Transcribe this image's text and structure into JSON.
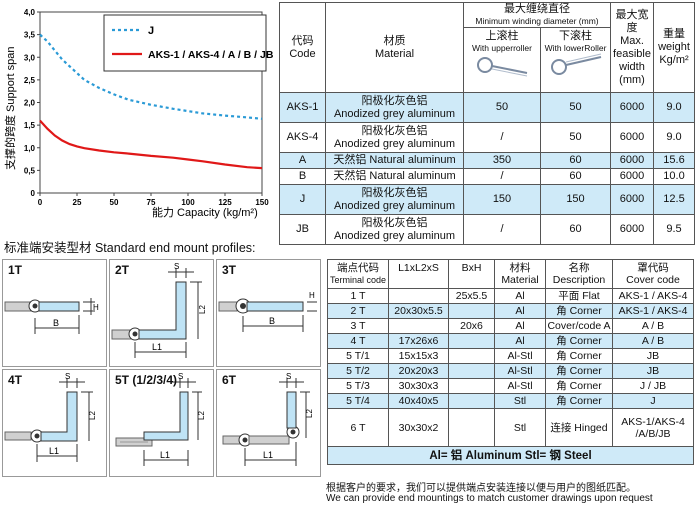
{
  "chart_data": {
    "type": "line",
    "ylabel": "支撑的跨度 Support span",
    "xlabel": "能力 Capacity (kg/m²)",
    "x_ticks": [
      "0",
      "25",
      "50",
      "75",
      "100",
      "125",
      "150"
    ],
    "y_ticks": [
      "0",
      "0,5",
      "1,0",
      "1,5",
      "2,0",
      "2,5",
      "3,0",
      "3,5",
      "4,0"
    ],
    "xlim": [
      0,
      150
    ],
    "ylim": [
      0,
      4
    ],
    "series": [
      {
        "name": "J",
        "color": "#2a9ad6",
        "dash": true,
        "x": [
          0,
          5,
          10,
          15,
          20,
          25,
          30,
          40,
          50,
          60,
          75,
          90,
          100,
          110,
          125,
          140,
          150
        ],
        "y": [
          3.5,
          3.35,
          3.15,
          2.95,
          2.8,
          2.65,
          2.5,
          2.32,
          2.18,
          2.06,
          1.95,
          1.86,
          1.81,
          1.76,
          1.71,
          1.67,
          1.64
        ]
      },
      {
        "name": "AKS-1 / AKS-4 / A / B / JB",
        "color": "#e01818",
        "dash": false,
        "x": [
          0,
          5,
          10,
          15,
          20,
          25,
          30,
          40,
          50,
          60,
          75,
          90,
          100,
          110,
          125,
          140,
          150
        ],
        "y": [
          1.6,
          1.42,
          1.27,
          1.16,
          1.08,
          1.03,
          0.99,
          0.94,
          0.9,
          0.87,
          0.82,
          0.78,
          0.74,
          0.7,
          0.63,
          0.57,
          0.55
        ]
      }
    ]
  },
  "top_table": {
    "h_code_cn": "代码",
    "h_code_en": "Code",
    "h_material_cn": "材质",
    "h_material_en": "Material",
    "h_winding_cn": "最大缠绕直径",
    "h_winding_en": "Minimum winding diameter (mm)",
    "h_upper_cn": "上滚柱",
    "h_upper_en": "With upperroller",
    "h_lower_cn": "下滚柱",
    "h_lower_en": "With lowerRoller",
    "h_width_cn": "最大宽度",
    "h_width_en1": "Max.",
    "h_width_en2": "feasible",
    "h_width_en3": "width",
    "h_width_en4": "(mm)",
    "h_weight_cn": "重量",
    "h_weight_en1": "weight",
    "h_weight_en2": "Kg/m²",
    "rows": [
      {
        "code": "AKS-1",
        "mat1": "阳极化灰色铝",
        "mat2": "Anodized grey aluminum",
        "upper": "50",
        "lower": "50",
        "width": "6000",
        "weight": "9.0"
      },
      {
        "code": "AKS-4",
        "mat1": "阳极化灰色铝",
        "mat2": "Anodized grey aluminum",
        "upper": "/",
        "lower": "50",
        "width": "6000",
        "weight": "9.0"
      },
      {
        "code": "A",
        "mat1": "天然铝 Natural aluminum",
        "mat2": "",
        "upper": "350",
        "lower": "60",
        "width": "6000",
        "weight": "15.6"
      },
      {
        "code": "B",
        "mat1": "天然铝 Natural aluminum",
        "mat2": "",
        "upper": "/",
        "lower": "60",
        "width": "6000",
        "weight": "10.0"
      },
      {
        "code": "J",
        "mat1": "阳极化灰色铝",
        "mat2": "Anodized grey aluminum",
        "upper": "150",
        "lower": "150",
        "width": "6000",
        "weight": "12.5"
      },
      {
        "code": "JB",
        "mat1": "阳极化灰色铝",
        "mat2": "Anodized grey aluminum",
        "upper": "/",
        "lower": "60",
        "width": "6000",
        "weight": "9.5"
      }
    ]
  },
  "profiles_title": "标准端安装型材 Standard end mount profiles:",
  "profiles": {
    "p1": "1T",
    "p2": "2T",
    "p3": "3T",
    "p4": "4T",
    "p5": "5T (1/2/3/4)",
    "p6": "6T",
    "dim_h": "H",
    "dim_b": "B",
    "dim_s": "S",
    "dim_l1": "L1",
    "dim_l2": "L2"
  },
  "bottom_table": {
    "h_term_cn": "端点代码",
    "h_term_en": "Terminal code",
    "h_dims": "L1xL2xS",
    "h_bxh": "BxH",
    "h_mat_cn": "材料",
    "h_mat_en": "Material",
    "h_name_cn": "名称",
    "h_name_en": "Description",
    "h_cover_cn": "罩代码",
    "h_cover_en": "Cover code",
    "rows": [
      {
        "term": "1 T",
        "dims": "",
        "bxh": "25x5.5",
        "mat": "Al",
        "desc": "平面 Flat",
        "cover": "AKS-1 / AKS-4"
      },
      {
        "term": "2 T",
        "dims": "20x30x5.5",
        "bxh": "",
        "mat": "Al",
        "desc": "角 Corner",
        "cover": "AKS-1 / AKS-4"
      },
      {
        "term": "3 T",
        "dims": "",
        "bxh": "20x6",
        "mat": "Al",
        "desc": "Cover/code A",
        "cover": "A / B"
      },
      {
        "term": "4 T",
        "dims": "17x26x6",
        "bxh": "",
        "mat": "Al",
        "desc": "角 Corner",
        "cover": "A / B"
      },
      {
        "term": "5 T/1",
        "dims": "15x15x3",
        "bxh": "",
        "mat": "Al-Stl",
        "desc": "角 Corner",
        "cover": "JB"
      },
      {
        "term": "5 T/2",
        "dims": "20x20x3",
        "bxh": "",
        "mat": "Al-Stl",
        "desc": "角 Corner",
        "cover": "JB"
      },
      {
        "term": "5 T/3",
        "dims": "30x30x3",
        "bxh": "",
        "mat": "Al-Stl",
        "desc": "角 Corner",
        "cover": "J / JB"
      },
      {
        "term": "5 T/4",
        "dims": "40x40x5",
        "bxh": "",
        "mat": "Stl",
        "desc": "角 Corner",
        "cover": "J"
      }
    ],
    "last_row": {
      "term": "6 T",
      "dims": "30x30x2",
      "bxh": "",
      "mat": "Stl",
      "desc": "连接 Hinged",
      "cover1": "AKS-1/AKS-4",
      "cover2": "/A/B/JB"
    },
    "legend": "Al= 铝 Aluminum Stl= 钢 Steel"
  },
  "footer_cn": "根据客户的要求，我们可以提供端点安装连接以便与用户的图纸匹配。",
  "footer_en": "We can provide end mountings to match customer drawings upon request",
  "colors": {
    "light_blue": "#cfeaf8",
    "profile_blue": "#bfe3f5",
    "grey_rail": "#cfcfcf"
  }
}
